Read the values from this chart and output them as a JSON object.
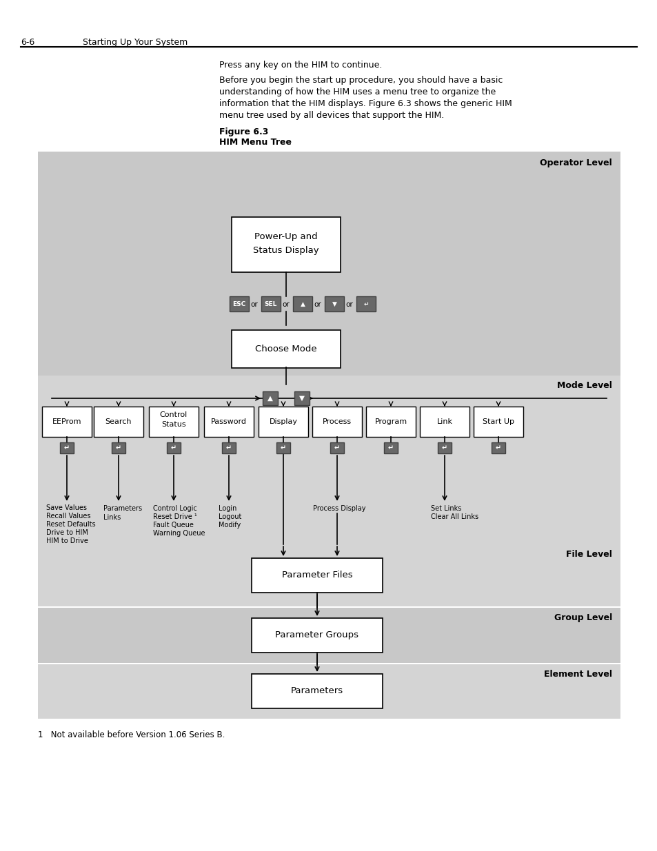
{
  "page_header_left": "6-6",
  "page_header_right": "Starting Up Your System",
  "text_line1": "Press any key on the HIM to continue.",
  "text_para_lines": [
    "Before you begin the start up procedure, you should have a basic",
    "understanding of how the HIM uses a menu tree to organize the",
    "information that the HIM displays. Figure 6.3 shows the generic HIM",
    "menu tree used by all devices that support the HIM."
  ],
  "fig_label": "Figure 6.3",
  "fig_title": "HIM Menu Tree",
  "bg_dark": "#c8c8c8",
  "bg_mid": "#d2d2d2",
  "bg_light": "#dadada",
  "box_fill": "#ffffff",
  "box_edge": "#000000",
  "btn_color": "#686868",
  "footnote": "1   Not available before Version 1.06 Series B."
}
